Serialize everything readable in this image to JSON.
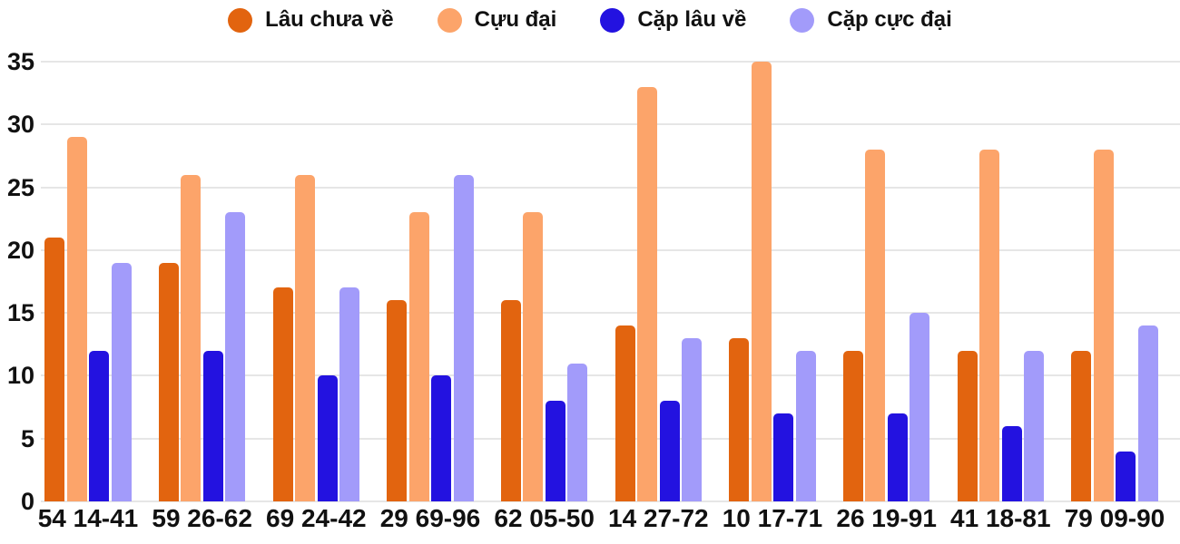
{
  "legend": {
    "items": [
      {
        "label": "Lâu chưa về",
        "color": "#e2640f"
      },
      {
        "label": "Cựu đại",
        "color": "#fca46a"
      },
      {
        "label": "Cặp lâu về",
        "color": "#2312e0"
      },
      {
        "label": "Cặp cực đại",
        "color": "#a29bfa"
      }
    ]
  },
  "chart_data": {
    "type": "bar",
    "title": "",
    "xlabel": "",
    "ylabel": "",
    "categories": [
      "54 14-41",
      "59 26-62",
      "69 24-42",
      "29 69-96",
      "62 05-50",
      "14 27-72",
      "10 17-71",
      "26 19-91",
      "41 18-81",
      "79 09-90"
    ],
    "series": [
      {
        "name": "Lâu chưa về",
        "color": "#e2640f",
        "values": [
          21,
          19,
          17,
          16,
          16,
          14,
          13,
          12,
          12,
          12
        ]
      },
      {
        "name": "Cựu đại",
        "color": "#fca46a",
        "values": [
          29,
          26,
          26,
          23,
          23,
          33,
          35,
          28,
          28,
          28
        ]
      },
      {
        "name": "Cặp lâu về",
        "color": "#2312e0",
        "values": [
          12,
          12,
          10,
          10,
          8,
          8,
          7,
          7,
          6,
          4
        ]
      },
      {
        "name": "Cặp cực đại",
        "color": "#a29bfa",
        "values": [
          19,
          23,
          17,
          26,
          11,
          13,
          12,
          15,
          12,
          14
        ]
      }
    ],
    "ylim": [
      0,
      35
    ],
    "yticks": [
      0,
      5,
      10,
      15,
      20,
      25,
      30,
      35
    ],
    "grid": true,
    "legend_position": "top"
  },
  "colors": {
    "background": "#ffffff",
    "gridline": "#e6e6e6",
    "text": "#111111"
  }
}
